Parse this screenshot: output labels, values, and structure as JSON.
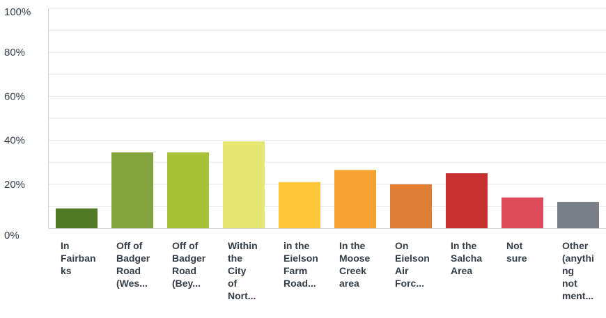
{
  "chart_data": {
    "type": "bar",
    "title": "",
    "xlabel": "",
    "ylabel": "",
    "ylim": [
      0,
      100
    ],
    "yticks": [
      "0%",
      "20%",
      "40%",
      "60%",
      "80%",
      "100%"
    ],
    "grid": true,
    "categories": [
      [
        "In",
        "Fairban",
        "ks"
      ],
      [
        "Off of",
        "Badger",
        "Road",
        "(Wes..."
      ],
      [
        "Off of",
        "Badger",
        "Road",
        "(Bey..."
      ],
      [
        "Within",
        "the",
        "City",
        "of",
        "Nort..."
      ],
      [
        "in the",
        "Eielson",
        "Farm",
        "Road..."
      ],
      [
        "In the",
        "Moose",
        "Creek",
        "area"
      ],
      [
        "On",
        "Eielson",
        "Air",
        "Forc..."
      ],
      [
        "In the",
        "Salcha",
        "Area"
      ],
      [
        "Not",
        "sure"
      ],
      [
        "Other",
        "(anythi",
        "ng",
        "not",
        "ment..."
      ]
    ],
    "values": [
      9,
      34.5,
      34.5,
      39.5,
      21,
      26.5,
      20,
      25,
      14,
      12
    ],
    "colors": [
      "#507a25",
      "#85a33c",
      "#a8c23a",
      "#e6e874",
      "#fdc93a",
      "#f3a231",
      "#df7c35",
      "#c93130",
      "#dd4b5b",
      "#787f86"
    ]
  }
}
